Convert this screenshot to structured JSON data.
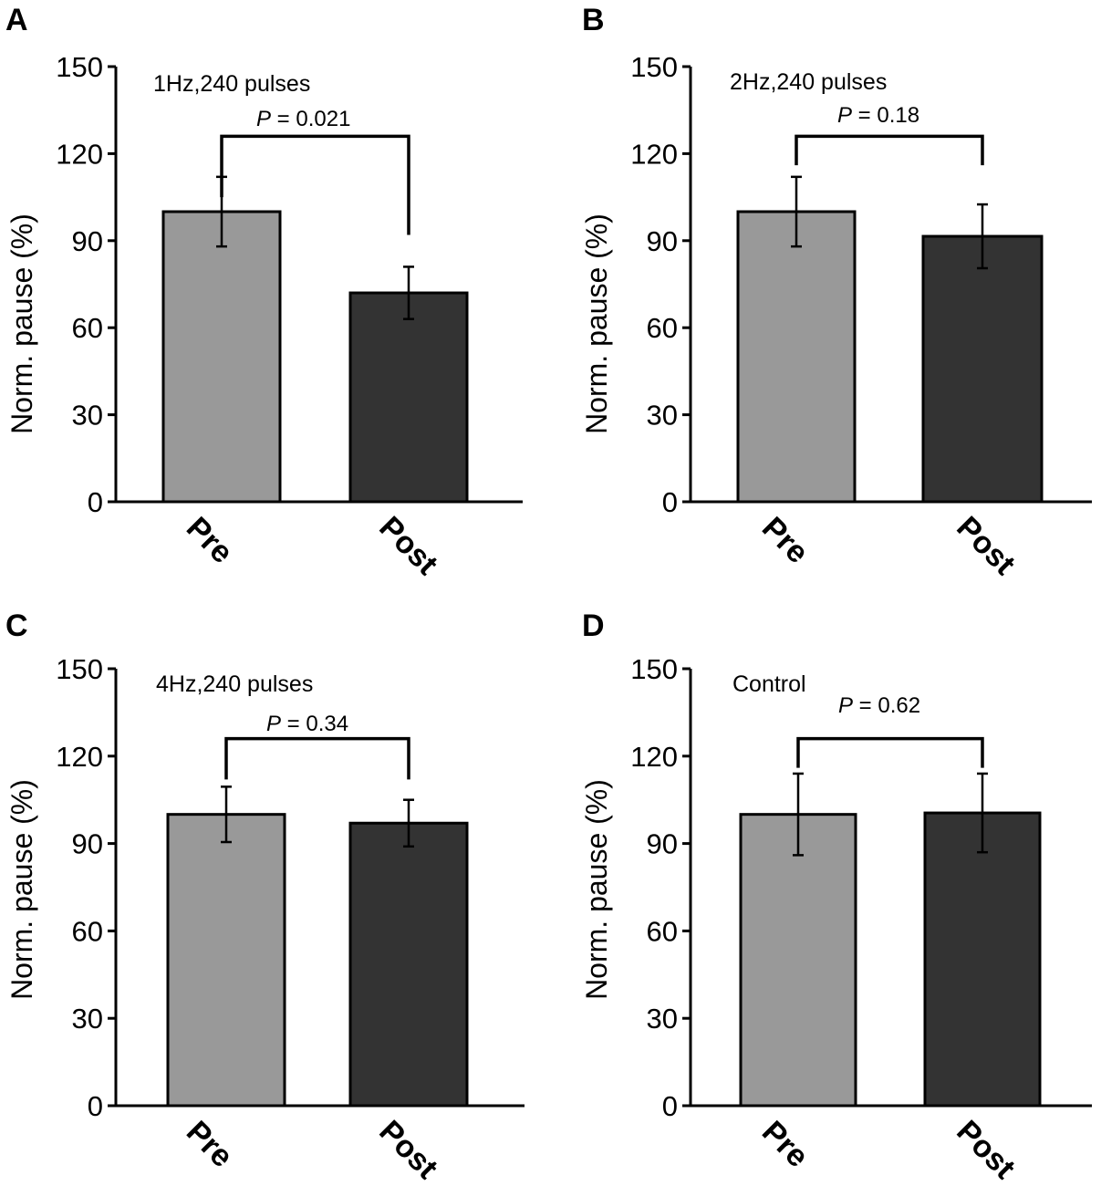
{
  "chart_data": [
    {
      "type": "bar",
      "panel": "A",
      "title": "1Hz,240 pulses",
      "ylabel": "Norm. pause  (%)",
      "xlabel": "",
      "categories": [
        "Pre",
        "Post"
      ],
      "values": [
        100,
        72
      ],
      "errors": [
        12,
        9
      ],
      "colors": [
        "#999999",
        "#333333"
      ],
      "ylim": [
        0,
        150
      ],
      "yticks": [
        0,
        30,
        60,
        90,
        120,
        150
      ],
      "significance": {
        "p_symbol": "P",
        "p_text": " = 0.021",
        "left_end": 105,
        "right_end": 92
      },
      "grid": false
    },
    {
      "type": "bar",
      "panel": "B",
      "title": "2Hz,240 pulses",
      "ylabel": "Norm. pause (%)",
      "xlabel": "",
      "categories": [
        "Pre",
        "Post"
      ],
      "values": [
        100,
        91.5
      ],
      "errors": [
        12,
        11
      ],
      "colors": [
        "#999999",
        "#333333"
      ],
      "ylim": [
        0,
        150
      ],
      "yticks": [
        0,
        30,
        60,
        90,
        120,
        150
      ],
      "significance": {
        "p_symbol": "P",
        "p_text": " = 0.18",
        "left_end": 116,
        "right_end": 116
      },
      "grid": false
    },
    {
      "type": "bar",
      "panel": "C",
      "title": "4Hz,240 pulses",
      "ylabel": "Norm. pause  (%)",
      "xlabel": "",
      "categories": [
        "Pre",
        "Post"
      ],
      "values": [
        100,
        97
      ],
      "errors": [
        9.5,
        8
      ],
      "colors": [
        "#999999",
        "#333333"
      ],
      "ylim": [
        0,
        150
      ],
      "yticks": [
        0,
        30,
        60,
        90,
        120,
        150
      ],
      "significance": {
        "p_symbol": "P",
        "p_text": " = 0.34",
        "left_end": 112,
        "right_end": 112
      },
      "grid": false
    },
    {
      "type": "bar",
      "panel": "D",
      "title": "Control",
      "ylabel": "Norm. pause (%)",
      "xlabel": "",
      "categories": [
        "Pre",
        "Post"
      ],
      "values": [
        100,
        100.5
      ],
      "errors": [
        14,
        13.5
      ],
      "colors": [
        "#999999",
        "#333333"
      ],
      "ylim": [
        0,
        150
      ],
      "yticks": [
        0,
        30,
        60,
        90,
        120,
        150
      ],
      "significance": {
        "p_symbol": "P",
        "p_text": " = 0.62",
        "left_end": 116,
        "right_end": 116
      },
      "grid": false
    }
  ]
}
